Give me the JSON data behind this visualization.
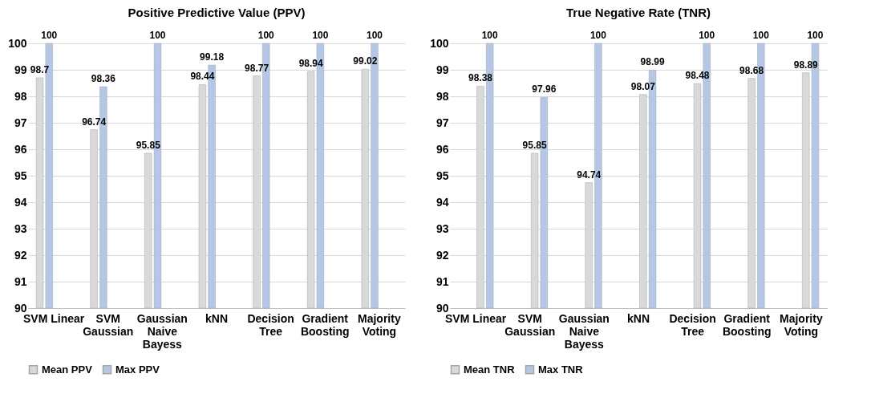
{
  "chart_data": [
    {
      "type": "bar",
      "title": "Positive Predictive Value (PPV)",
      "categories": [
        "SVM Linear",
        "SVM\nGaussian",
        "Gaussian\nNaive\nBayess",
        "kNN",
        "Decision\nTree",
        "Gradient\nBoosting",
        "Majority\nVoting"
      ],
      "series": [
        {
          "name": "Mean PPV",
          "color": "#d9d9d9",
          "values": [
            98.7,
            96.74,
            95.85,
            98.44,
            98.77,
            98.94,
            99.02
          ]
        },
        {
          "name": "Max PPV",
          "color": "#b4c7e7",
          "values": [
            100,
            98.36,
            100,
            99.18,
            100,
            100,
            100
          ]
        }
      ],
      "ylim": [
        90,
        100
      ],
      "yticks": [
        90,
        91,
        92,
        93,
        94,
        95,
        96,
        97,
        98,
        99,
        100
      ],
      "grid": "y",
      "legend": "bottom",
      "data_labels": true
    },
    {
      "type": "bar",
      "title": "True Negative Rate (TNR)",
      "categories": [
        "SVM Linear",
        "SVM\nGaussian",
        "Gaussian\nNaive\nBayess",
        "kNN",
        "Decision\nTree",
        "Gradient\nBoosting",
        "Majority\nVoting"
      ],
      "series": [
        {
          "name": "Mean TNR",
          "color": "#d9d9d9",
          "values": [
            98.38,
            95.85,
            94.74,
            98.07,
            98.48,
            98.68,
            98.89
          ]
        },
        {
          "name": "Max TNR",
          "color": "#b4c7e7",
          "values": [
            100,
            97.96,
            100,
            98.99,
            100,
            100,
            100
          ]
        }
      ],
      "ylim": [
        90,
        100
      ],
      "yticks": [
        90,
        91,
        92,
        93,
        94,
        95,
        96,
        97,
        98,
        99,
        100
      ],
      "grid": "y",
      "legend": "bottom",
      "data_labels": true
    }
  ]
}
